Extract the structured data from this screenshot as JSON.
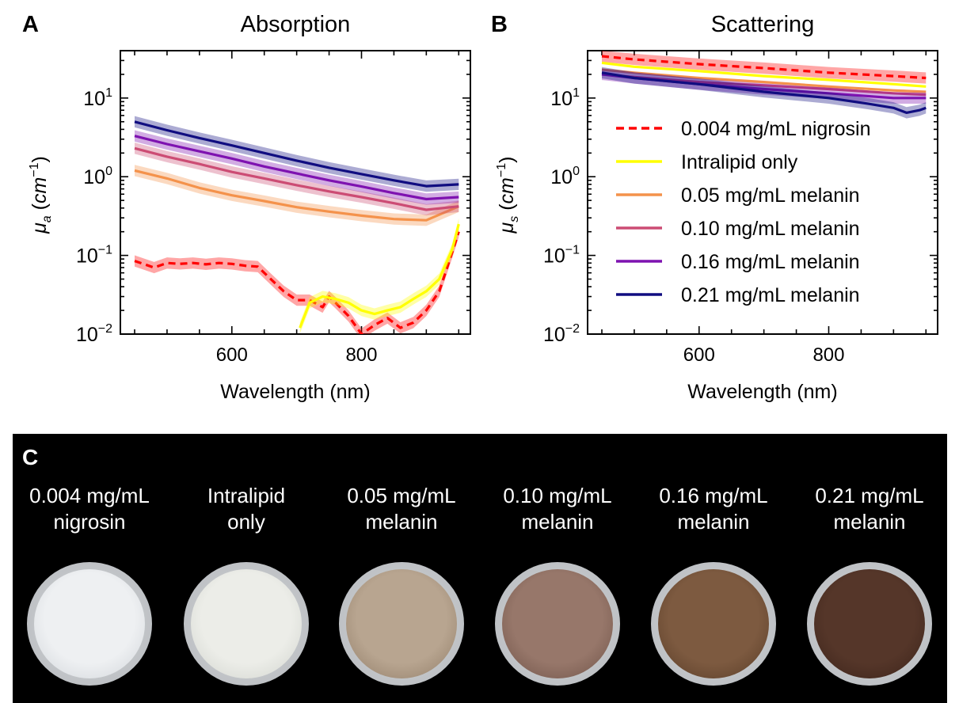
{
  "panels": {
    "A": {
      "letter": "A",
      "title": "Absorption",
      "xlabel": "Wavelength (nm)",
      "ylabel_sym": "μ",
      "ylabel_sub": "a",
      "ylabel_unit": "cm",
      "ylabel_exp": "−1"
    },
    "B": {
      "letter": "B",
      "title": "Scattering",
      "xlabel": "Wavelength (nm)",
      "ylabel_sym": "μ",
      "ylabel_sub": "s",
      "ylabel_unit": "cm",
      "ylabel_exp": "−1"
    },
    "C": {
      "letter": "C"
    }
  },
  "chart_data": [
    {
      "type": "line",
      "title": "Absorption",
      "xlabel": "Wavelength (nm)",
      "ylabel": "μa (cm−1)",
      "xlim": [
        428,
        968
      ],
      "ylim": [
        0.01,
        40
      ],
      "yscale": "log",
      "xticks": [
        "600",
        "800"
      ],
      "yticks": [
        "10^-2",
        "10^-1",
        "10^0",
        "10^1"
      ],
      "series": [
        {
          "name": "0.004 mg/mL nigrosin",
          "color": "#ff0000",
          "dash": true,
          "band": true,
          "x": [
            450,
            480,
            500,
            520,
            540,
            560,
            580,
            600,
            620,
            640,
            660,
            680,
            700,
            720,
            740,
            750,
            760,
            780,
            800,
            820,
            840,
            860,
            880,
            900,
            920,
            940,
            950
          ],
          "y": [
            0.085,
            0.07,
            0.08,
            0.078,
            0.08,
            0.077,
            0.08,
            0.078,
            0.074,
            0.072,
            0.05,
            0.035,
            0.027,
            0.027,
            0.022,
            0.03,
            0.025,
            0.017,
            0.01,
            0.013,
            0.016,
            0.012,
            0.014,
            0.02,
            0.035,
            0.11,
            0.2
          ]
        },
        {
          "name": "Intralipid only",
          "color": "#ffff00",
          "dash": false,
          "band": true,
          "x": [
            705,
            720,
            740,
            760,
            780,
            800,
            820,
            840,
            860,
            880,
            900,
            920,
            940,
            950
          ],
          "y": [
            0.012,
            0.025,
            0.03,
            0.028,
            0.025,
            0.02,
            0.018,
            0.02,
            0.022,
            0.028,
            0.035,
            0.05,
            0.12,
            0.25
          ]
        },
        {
          "name": "0.05 mg/mL melanin",
          "color": "#f4924b",
          "dash": false,
          "band": true,
          "x": [
            450,
            500,
            550,
            600,
            650,
            700,
            750,
            800,
            850,
            900,
            950
          ],
          "y": [
            1.2,
            0.95,
            0.72,
            0.58,
            0.49,
            0.41,
            0.36,
            0.32,
            0.29,
            0.28,
            0.42
          ]
        },
        {
          "name": "0.10 mg/mL melanin",
          "color": "#cc4c74",
          "dash": false,
          "band": true,
          "x": [
            450,
            500,
            550,
            600,
            650,
            700,
            750,
            800,
            850,
            900,
            950
          ],
          "y": [
            2.3,
            1.8,
            1.45,
            1.15,
            0.95,
            0.78,
            0.65,
            0.55,
            0.46,
            0.38,
            0.42
          ]
        },
        {
          "name": "0.16 mg/mL melanin",
          "color": "#7e12b0",
          "dash": false,
          "band": true,
          "x": [
            450,
            500,
            550,
            600,
            650,
            700,
            750,
            800,
            850,
            900,
            950
          ],
          "y": [
            3.3,
            2.6,
            2.1,
            1.7,
            1.35,
            1.1,
            0.9,
            0.75,
            0.62,
            0.52,
            0.55
          ]
        },
        {
          "name": "0.21 mg/mL melanin",
          "color": "#100d80",
          "dash": false,
          "band": true,
          "x": [
            450,
            500,
            550,
            600,
            650,
            700,
            750,
            800,
            850,
            900,
            950
          ],
          "y": [
            5.0,
            3.9,
            3.1,
            2.5,
            2.0,
            1.6,
            1.3,
            1.08,
            0.9,
            0.76,
            0.8
          ]
        }
      ]
    },
    {
      "type": "line",
      "title": "Scattering",
      "xlabel": "Wavelength (nm)",
      "ylabel": "μs (cm−1)",
      "xlim": [
        428,
        968
      ],
      "ylim": [
        0.01,
        40
      ],
      "yscale": "log",
      "xticks": [
        "600",
        "800"
      ],
      "yticks": [
        "10^-2",
        "10^-1",
        "10^0",
        "10^1"
      ],
      "legend": {
        "position": "right"
      },
      "series": [
        {
          "name": "0.004 mg/mL nigrosin",
          "color": "#ff0000",
          "dash": true,
          "band": true,
          "x": [
            450,
            500,
            600,
            700,
            800,
            900,
            950
          ],
          "y": [
            34,
            31,
            27,
            24,
            21,
            19,
            18
          ]
        },
        {
          "name": "Intralipid only",
          "color": "#ffff00",
          "dash": false,
          "band": false,
          "x": [
            450,
            500,
            600,
            700,
            800,
            900,
            950
          ],
          "y": [
            28,
            25,
            22,
            19,
            17,
            15,
            14
          ]
        },
        {
          "name": "0.05 mg/mL melanin",
          "color": "#f4924b",
          "dash": false,
          "band": false,
          "x": [
            450,
            500,
            600,
            700,
            800,
            900,
            950
          ],
          "y": [
            23,
            21,
            18,
            16,
            14,
            12.5,
            12
          ]
        },
        {
          "name": "0.10 mg/mL melanin",
          "color": "#cc4c74",
          "dash": false,
          "band": false,
          "x": [
            450,
            500,
            600,
            700,
            800,
            900,
            950
          ],
          "y": [
            20,
            18.5,
            16,
            14.5,
            13,
            11.5,
            11
          ]
        },
        {
          "name": "0.16 mg/mL melanin",
          "color": "#7e12b0",
          "dash": false,
          "band": true,
          "x": [
            450,
            500,
            600,
            700,
            800,
            900,
            950
          ],
          "y": [
            20,
            18,
            15,
            13,
            11.5,
            10,
            10
          ]
        },
        {
          "name": "0.21 mg/mL melanin",
          "color": "#100d80",
          "dash": false,
          "band": true,
          "x": [
            450,
            500,
            600,
            700,
            800,
            860,
            900,
            920,
            940,
            950
          ],
          "y": [
            21,
            18,
            15,
            12,
            10,
            8.5,
            7.5,
            6.5,
            7,
            7.5
          ]
        }
      ]
    }
  ],
  "samples": [
    {
      "line1": "0.004 mg/mL",
      "line2": "nigrosin",
      "center": "#eef0f2",
      "edge": "#cfd3d8"
    },
    {
      "line1": "Intralipid",
      "line2": "only",
      "center": "#ecede8",
      "edge": "#cfd2cc"
    },
    {
      "line1": "0.05 mg/mL",
      "line2": "melanin",
      "center": "#b8a590",
      "edge": "#8f7b66"
    },
    {
      "line1": "0.10 mg/mL",
      "line2": "melanin",
      "center": "#97776a",
      "edge": "#6d5146"
    },
    {
      "line1": "0.16 mg/mL",
      "line2": "melanin",
      "center": "#7d5a40",
      "edge": "#573b26"
    },
    {
      "line1": "0.21 mg/mL",
      "line2": "melanin",
      "center": "#553629",
      "edge": "#3a2219"
    }
  ]
}
